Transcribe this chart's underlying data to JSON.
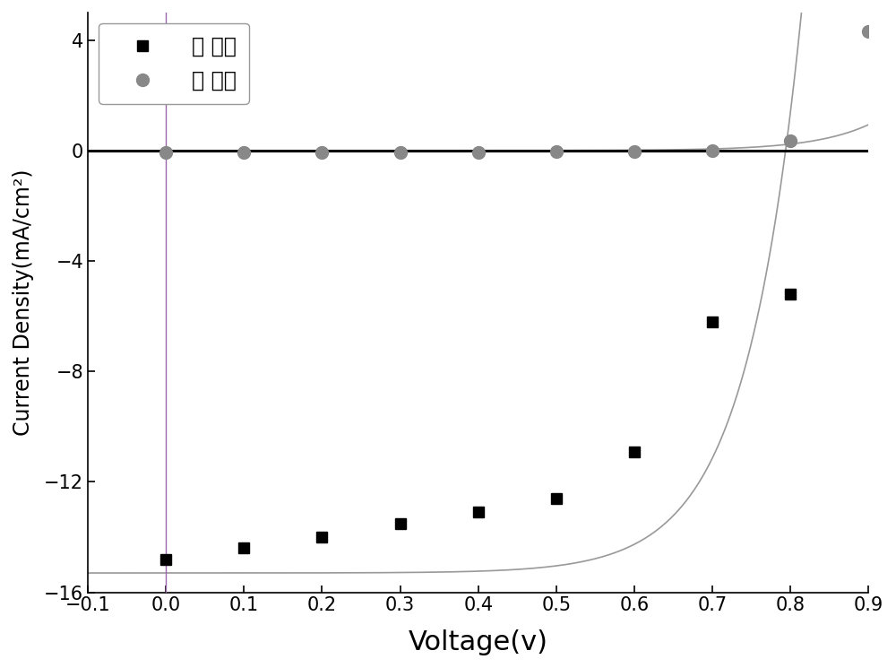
{
  "title": "",
  "xlabel": "Voltage(v)",
  "ylabel": "Current Density(mA/cm²)",
  "xlim": [
    -0.1,
    0.9
  ],
  "ylim": [
    -16,
    5
  ],
  "xticks": [
    -0.1,
    0.0,
    0.1,
    0.2,
    0.3,
    0.4,
    0.5,
    0.6,
    0.7,
    0.8,
    0.9
  ],
  "yticks": [
    -16,
    -12,
    -8,
    -4,
    0,
    4
  ],
  "light_x_points": [
    0.0,
    0.1,
    0.2,
    0.3,
    0.4,
    0.5,
    0.6,
    0.7,
    0.8
  ],
  "light_y_points": [
    -14.8,
    -14.4,
    -14.0,
    -13.5,
    -13.1,
    -12.6,
    -10.9,
    -6.2,
    -5.2
  ],
  "dark_x_points": [
    0.0,
    0.1,
    0.2,
    0.3,
    0.4,
    0.5,
    0.6,
    0.7,
    0.8,
    0.9
  ],
  "dark_y_points": [
    -0.08,
    -0.07,
    -0.07,
    -0.07,
    -0.06,
    -0.05,
    -0.04,
    -0.02,
    0.35,
    4.3
  ],
  "light_curve_color": "#999999",
  "dark_curve_color": "#999999",
  "light_marker_color": "#000000",
  "dark_marker_color": "#888888",
  "zero_line_color": "#000000",
  "vline_color": "#9966aa",
  "legend_light": "光 电流",
  "legend_dark": "暗 电流",
  "background_color": "#ffffff",
  "figsize": [
    10.0,
    7.45
  ],
  "dpi": 100,
  "Jsc": 15.3,
  "J0_light": 0.00025,
  "n_light": 0.072,
  "J0_dark": 3.5e-06,
  "n_dark": 0.072
}
